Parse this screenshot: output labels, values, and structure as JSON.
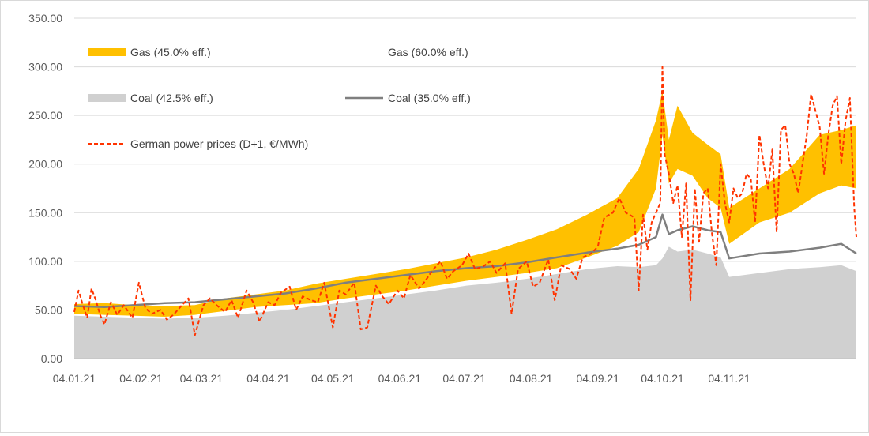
{
  "chart_data": {
    "type": "area",
    "title": "",
    "xlabel": "",
    "ylabel": "",
    "ylim": [
      0,
      350
    ],
    "y_ticks": [
      "0.00",
      "50.00",
      "100.00",
      "150.00",
      "200.00",
      "250.00",
      "300.00",
      "350.00"
    ],
    "x_ticks": [
      "04.01.21",
      "04.02.21",
      "04.03.21",
      "04.04.21",
      "04.05.21",
      "04.06.21",
      "04.07.21",
      "04.08.21",
      "04.09.21",
      "04.10.21",
      "04.11.21"
    ],
    "x_tick_days": [
      0,
      31,
      59,
      90,
      120,
      151,
      181,
      212,
      243,
      273,
      304
    ],
    "x_end_day": 363,
    "grid": "horizontal",
    "legend_placement": "top-left",
    "colors": {
      "gas_band": "#ffc000",
      "coal_area": "#d0d0d0",
      "coal_line": "#7f7f7f",
      "power": "#ff3300"
    },
    "series": [
      {
        "name": "Coal (42.5% eff.)",
        "kind": "area",
        "days": [
          0,
          14,
          28,
          42,
          56,
          70,
          84,
          98,
          112,
          126,
          140,
          154,
          168,
          182,
          196,
          210,
          224,
          238,
          252,
          262,
          270,
          273,
          276,
          280,
          287,
          294,
          300,
          304,
          318,
          332,
          346,
          356,
          363
        ],
        "values": [
          44,
          43,
          42,
          41,
          42,
          44,
          47,
          50,
          54,
          58,
          62,
          66,
          70,
          75,
          78,
          82,
          87,
          92,
          95,
          94,
          96,
          103,
          115,
          110,
          112,
          108,
          104,
          84,
          88,
          92,
          94,
          96,
          90
        ]
      },
      {
        "name": "Coal (35.0% eff.)",
        "kind": "line",
        "days": [
          0,
          14,
          28,
          42,
          56,
          70,
          84,
          98,
          112,
          126,
          140,
          154,
          168,
          182,
          196,
          210,
          224,
          238,
          252,
          262,
          270,
          273,
          276,
          280,
          287,
          294,
          300,
          304,
          318,
          332,
          346,
          356,
          363
        ],
        "values": [
          54,
          53,
          55,
          57,
          58,
          61,
          64,
          67,
          72,
          78,
          82,
          86,
          90,
          93,
          95,
          99,
          104,
          109,
          113,
          117,
          125,
          148,
          128,
          132,
          136,
          132,
          130,
          103,
          108,
          110,
          114,
          118,
          108
        ]
      },
      {
        "name": "Gas (45.0% eff.)",
        "kind": "band",
        "days": [
          0,
          14,
          28,
          42,
          56,
          70,
          84,
          98,
          112,
          126,
          140,
          154,
          168,
          182,
          196,
          210,
          224,
          238,
          252,
          262,
          270,
          273,
          276,
          280,
          287,
          294,
          300,
          304,
          318,
          332,
          346,
          356,
          363
        ],
        "upper": [
          56,
          57,
          55,
          54,
          55,
          62,
          66,
          70,
          77,
          82,
          87,
          92,
          98,
          104,
          112,
          122,
          133,
          148,
          165,
          195,
          245,
          275,
          225,
          260,
          232,
          220,
          210,
          155,
          175,
          195,
          230,
          235,
          240
        ],
        "lower": [
          46,
          45,
          44,
          43,
          45,
          49,
          53,
          55,
          57,
          62,
          66,
          70,
          75,
          80,
          84,
          88,
          93,
          104,
          116,
          130,
          175,
          230,
          180,
          195,
          188,
          165,
          155,
          118,
          140,
          150,
          170,
          178,
          175
        ]
      },
      {
        "name": "Gas (60.0% eff.)",
        "kind": "hidden",
        "days": [],
        "values": []
      },
      {
        "name": "German power prices (D+1, €/MWh)",
        "kind": "dashed",
        "days": [
          0,
          2,
          4,
          6,
          8,
          10,
          12,
          14,
          17,
          20,
          23,
          27,
          30,
          33,
          36,
          40,
          43,
          46,
          50,
          53,
          56,
          60,
          63,
          66,
          70,
          73,
          76,
          80,
          83,
          86,
          90,
          93,
          96,
          100,
          103,
          106,
          110,
          113,
          116,
          120,
          123,
          126,
          130,
          133,
          136,
          140,
          143,
          146,
          150,
          153,
          156,
          160,
          163,
          166,
          170,
          173,
          176,
          180,
          183,
          186,
          190,
          193,
          196,
          200,
          203,
          206,
          210,
          213,
          216,
          220,
          223,
          226,
          230,
          233,
          236,
          240,
          243,
          246,
          250,
          253,
          256,
          260,
          262,
          264,
          266,
          268,
          270,
          272,
          273,
          274,
          276,
          278,
          280,
          282,
          284,
          286,
          288,
          290,
          292,
          294,
          296,
          298,
          300,
          302,
          304,
          306,
          308,
          310,
          312,
          314,
          316,
          318,
          320,
          322,
          324,
          326,
          328,
          330,
          332,
          334,
          336,
          338,
          340,
          342,
          344,
          346,
          348,
          350,
          352,
          354,
          356,
          358,
          360,
          362,
          363
        ],
        "values": [
          48,
          70,
          55,
          42,
          72,
          60,
          45,
          35,
          58,
          45,
          55,
          42,
          78,
          52,
          46,
          50,
          40,
          45,
          55,
          62,
          24,
          55,
          62,
          55,
          48,
          60,
          42,
          70,
          58,
          38,
          58,
          55,
          68,
          74,
          50,
          64,
          60,
          58,
          78,
          32,
          70,
          66,
          78,
          30,
          32,
          75,
          64,
          56,
          70,
          62,
          86,
          72,
          80,
          90,
          100,
          82,
          90,
          96,
          108,
          92,
          95,
          100,
          88,
          98,
          46,
          92,
          100,
          74,
          78,
          102,
          60,
          96,
          92,
          82,
          104,
          108,
          115,
          145,
          150,
          165,
          150,
          145,
          70,
          148,
          112,
          140,
          150,
          160,
          300,
          210,
          190,
          160,
          178,
          125,
          180,
          60,
          175,
          120,
          170,
          175,
          128,
          96,
          200,
          160,
          140,
          175,
          165,
          170,
          190,
          185,
          140,
          230,
          200,
          175,
          215,
          130,
          235,
          240,
          200,
          190,
          170,
          200,
          230,
          272,
          255,
          238,
          190,
          230,
          260,
          270,
          200,
          245,
          268,
          155,
          125
        ]
      }
    ]
  }
}
